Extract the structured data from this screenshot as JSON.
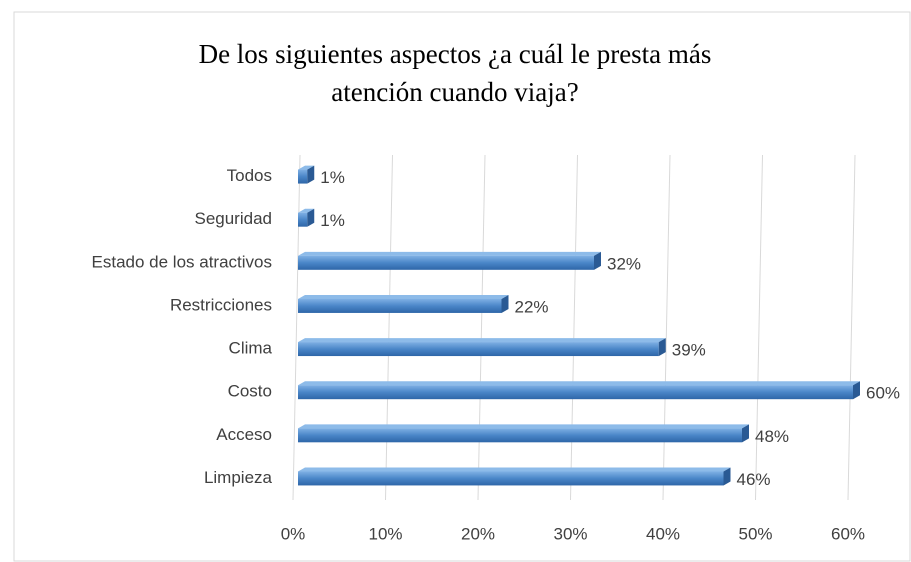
{
  "chart_data": {
    "type": "bar",
    "orientation": "horizontal",
    "title_lines": [
      "De los siguientes aspectos ¿a cuál le presta más",
      "atención cuando viaja?"
    ],
    "categories": [
      "Todos",
      "Seguridad",
      "Estado de los atractivos",
      "Restricciones",
      "Clima",
      "Costo",
      "Acceso",
      "Limpieza"
    ],
    "values": [
      1,
      1,
      32,
      22,
      39,
      60,
      48,
      46
    ],
    "value_labels": [
      "1%",
      "1%",
      "32%",
      "22%",
      "39%",
      "60%",
      "48%",
      "46%"
    ],
    "color": "#4a86c8",
    "xlim": [
      0,
      60
    ],
    "xticks": [
      {
        "value": 0,
        "label": "0%"
      },
      {
        "value": 10,
        "label": "10%"
      },
      {
        "value": 20,
        "label": "20%"
      },
      {
        "value": 30,
        "label": "30%"
      },
      {
        "value": 40,
        "label": "40%"
      },
      {
        "value": 50,
        "label": "50%"
      },
      {
        "value": 60,
        "label": "60%"
      }
    ],
    "grid": true
  }
}
